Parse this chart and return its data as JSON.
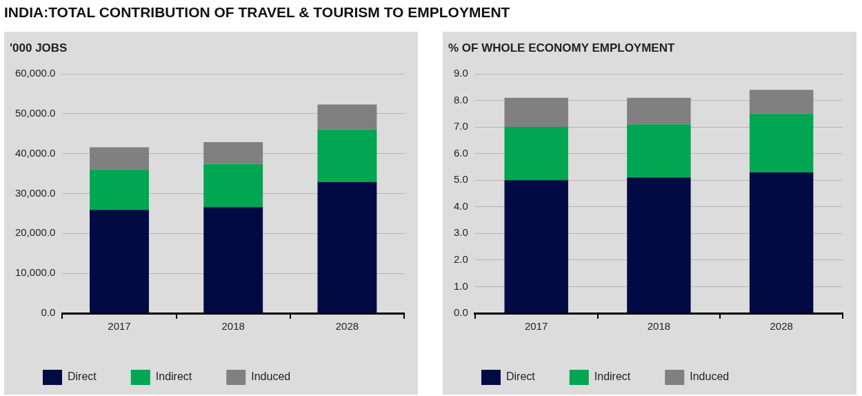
{
  "chart_data": [
    {
      "type": "bar",
      "title": "INDIA:TOTAL CONTRIBUTION OF TRAVEL & TOURISM TO EMPLOYMENT",
      "subtitle": "'000 JOBS",
      "categories": [
        "2017",
        "2018",
        "2028"
      ],
      "stacked": true,
      "series": [
        {
          "name": "Direct",
          "color": "#020a44",
          "values": [
            25900,
            26600,
            32900
          ]
        },
        {
          "name": "Indirect",
          "color": "#00a651",
          "values": [
            10100,
            10800,
            13200
          ]
        },
        {
          "name": "Induced",
          "color": "#808080",
          "values": [
            5600,
            5500,
            6200
          ]
        }
      ],
      "ylim": [
        0,
        60000
      ],
      "yticks": [
        {
          "value": 0,
          "label": "0.0"
        },
        {
          "value": 10000,
          "label": "10,000.0"
        },
        {
          "value": 20000,
          "label": "20,000.0"
        },
        {
          "value": 30000,
          "label": "30,000.0"
        },
        {
          "value": 40000,
          "label": "40,000.0"
        },
        {
          "value": 50000,
          "label": "50,000.0"
        },
        {
          "value": 60000,
          "label": "60,000.0"
        }
      ],
      "grid": "y",
      "legend": "bottom left"
    },
    {
      "type": "bar",
      "subtitle": "% OF WHOLE ECONOMY EMPLOYMENT",
      "categories": [
        "2017",
        "2018",
        "2028"
      ],
      "stacked": true,
      "series": [
        {
          "name": "Direct",
          "color": "#020a44",
          "values": [
            5.0,
            5.1,
            5.3
          ]
        },
        {
          "name": "Indirect",
          "color": "#00a651",
          "values": [
            2.0,
            2.0,
            2.2
          ]
        },
        {
          "name": "Induced",
          "color": "#808080",
          "values": [
            1.1,
            1.0,
            0.9
          ]
        }
      ],
      "ylim": [
        0,
        9
      ],
      "yticks": [
        {
          "value": 0,
          "label": "0.0"
        },
        {
          "value": 1,
          "label": "1.0"
        },
        {
          "value": 2,
          "label": "2.0"
        },
        {
          "value": 3,
          "label": "3.0"
        },
        {
          "value": 4,
          "label": "4.0"
        },
        {
          "value": 5,
          "label": "5.0"
        },
        {
          "value": 6,
          "label": "6.0"
        },
        {
          "value": 7,
          "label": "7.0"
        },
        {
          "value": 8,
          "label": "8.0"
        },
        {
          "value": 9,
          "label": "9.0"
        }
      ],
      "grid": "y",
      "legend": "bottom left"
    }
  ]
}
